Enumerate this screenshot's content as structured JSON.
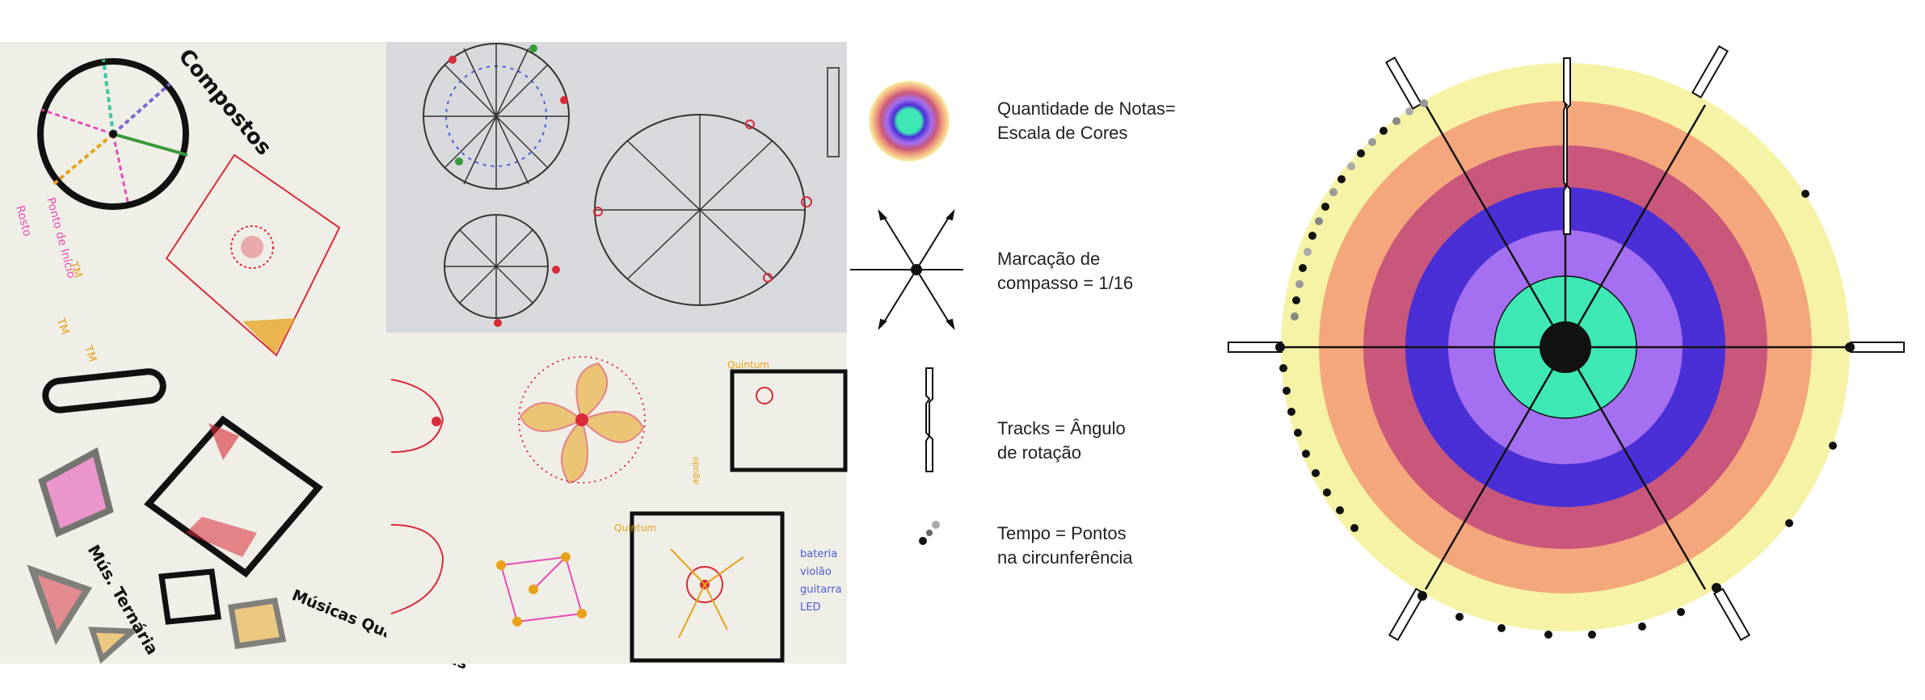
{
  "sketches": {
    "top_left": {
      "title": "Compostos",
      "note": "Ponto de Início",
      "note2": "Rosto",
      "tm_marks": [
        "TM",
        "TM",
        "TM"
      ]
    },
    "bottom_left": {
      "label_ternaria": "Mús. Ternária",
      "label_quaternaria": "Músicas Quaternárias"
    },
    "bottom_right": {
      "label_quintum": "Quintum",
      "label_quintum_top": "Quintum",
      "instruments": [
        "bateria",
        "violão",
        "guitarra",
        "LED"
      ],
      "side_label": "agudo"
    }
  },
  "legend": {
    "items": [
      {
        "line1": "Quantidade de Notas=",
        "line2": "Escala de Cores",
        "icon": "color-scale-icon"
      },
      {
        "line1": "Marcação de",
        "line2": "compasso = 1/16",
        "icon": "measure-marker-icon"
      },
      {
        "line1": "Tracks = Ângulo",
        "line2": "de rotação",
        "icon": "track-rotation-icon"
      },
      {
        "line1": "Tempo = Pontos",
        "line2": "na circunferência",
        "icon": "time-dots-icon"
      }
    ]
  },
  "colors": {
    "ring_yellow": "#f6f3a6",
    "ring_orange": "#f4a77c",
    "ring_rose": "#c9577c",
    "ring_blue": "#4a2fd6",
    "ring_violet": "#a46ff0",
    "ring_teal": "#3ee8b5",
    "center": "#111111",
    "paper": "#f0efe7",
    "paper_gray": "#d7d9dd",
    "ink_red": "#d92a3a",
    "ink_orange": "#e8a21a",
    "ink_blue": "#4a5cd6",
    "ink_pink": "#e64db5"
  }
}
